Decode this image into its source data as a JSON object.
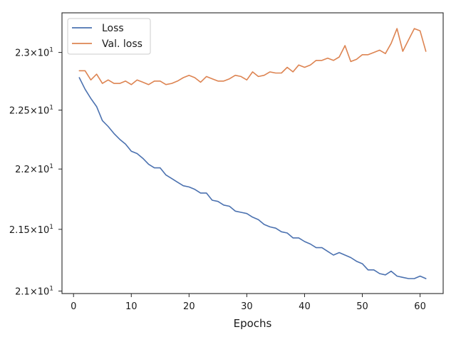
{
  "chart_data": {
    "type": "line",
    "title": "",
    "xlabel": "Epochs",
    "ylabel": "",
    "xlim": [
      -2,
      64
    ],
    "ylim": [
      20.98,
      23.35
    ],
    "yscale": "log",
    "grid": false,
    "legend": "top-left",
    "x_ticks": [
      {
        "value": 0,
        "label": "0"
      },
      {
        "value": 10,
        "label": "10"
      },
      {
        "value": 20,
        "label": "20"
      },
      {
        "value": 30,
        "label": "30"
      },
      {
        "value": 40,
        "label": "40"
      },
      {
        "value": 50,
        "label": "50"
      },
      {
        "value": 60,
        "label": "60"
      }
    ],
    "y_ticks": [
      {
        "value": 21.0,
        "base": "2.1",
        "exp": "1"
      },
      {
        "value": 21.5,
        "base": "2.15",
        "exp": "1"
      },
      {
        "value": 22.0,
        "base": "2.2",
        "exp": "1"
      },
      {
        "value": 22.5,
        "base": "2.25",
        "exp": "1"
      },
      {
        "value": 23.0,
        "base": "2.3",
        "exp": "1"
      }
    ],
    "x": [
      1,
      2,
      3,
      4,
      5,
      6,
      7,
      8,
      9,
      10,
      11,
      12,
      13,
      14,
      15,
      16,
      17,
      18,
      19,
      20,
      21,
      22,
      23,
      24,
      25,
      26,
      27,
      28,
      29,
      30,
      31,
      32,
      33,
      34,
      35,
      36,
      37,
      38,
      39,
      40,
      41,
      42,
      43,
      44,
      45,
      46,
      47,
      48,
      49,
      50,
      51,
      52,
      53,
      54,
      55,
      56,
      57,
      58,
      59,
      60,
      61
    ],
    "series": [
      {
        "name": "Loss",
        "color": "#4c72b0",
        "values": [
          22.78,
          22.68,
          22.6,
          22.53,
          22.41,
          22.36,
          22.3,
          22.25,
          22.21,
          22.15,
          22.13,
          22.09,
          22.04,
          22.01,
          22.01,
          21.95,
          21.92,
          21.89,
          21.86,
          21.85,
          21.83,
          21.8,
          21.8,
          21.74,
          21.73,
          21.7,
          21.69,
          21.65,
          21.64,
          21.63,
          21.6,
          21.58,
          21.54,
          21.52,
          21.51,
          21.48,
          21.47,
          21.43,
          21.43,
          21.4,
          21.38,
          21.35,
          21.35,
          21.32,
          21.29,
          21.31,
          21.29,
          21.27,
          21.24,
          21.22,
          21.17,
          21.17,
          21.14,
          21.13,
          21.16,
          21.12,
          21.11,
          21.1,
          21.1,
          21.12,
          21.1
        ]
      },
      {
        "name": "Val. loss",
        "color": "#dd8452",
        "values": [
          22.84,
          22.84,
          22.76,
          22.81,
          22.73,
          22.76,
          22.73,
          22.73,
          22.75,
          22.72,
          22.76,
          22.74,
          22.72,
          22.75,
          22.75,
          22.72,
          22.73,
          22.75,
          22.78,
          22.8,
          22.78,
          22.74,
          22.79,
          22.77,
          22.75,
          22.75,
          22.77,
          22.8,
          22.79,
          22.76,
          22.83,
          22.79,
          22.8,
          22.83,
          22.82,
          22.82,
          22.87,
          22.83,
          22.89,
          22.87,
          22.89,
          22.93,
          22.93,
          22.95,
          22.93,
          22.96,
          23.06,
          22.92,
          22.94,
          22.98,
          22.98,
          23.0,
          23.02,
          22.99,
          23.08,
          23.21,
          23.01,
          23.11,
          23.21,
          23.19,
          23.01
        ]
      }
    ]
  }
}
